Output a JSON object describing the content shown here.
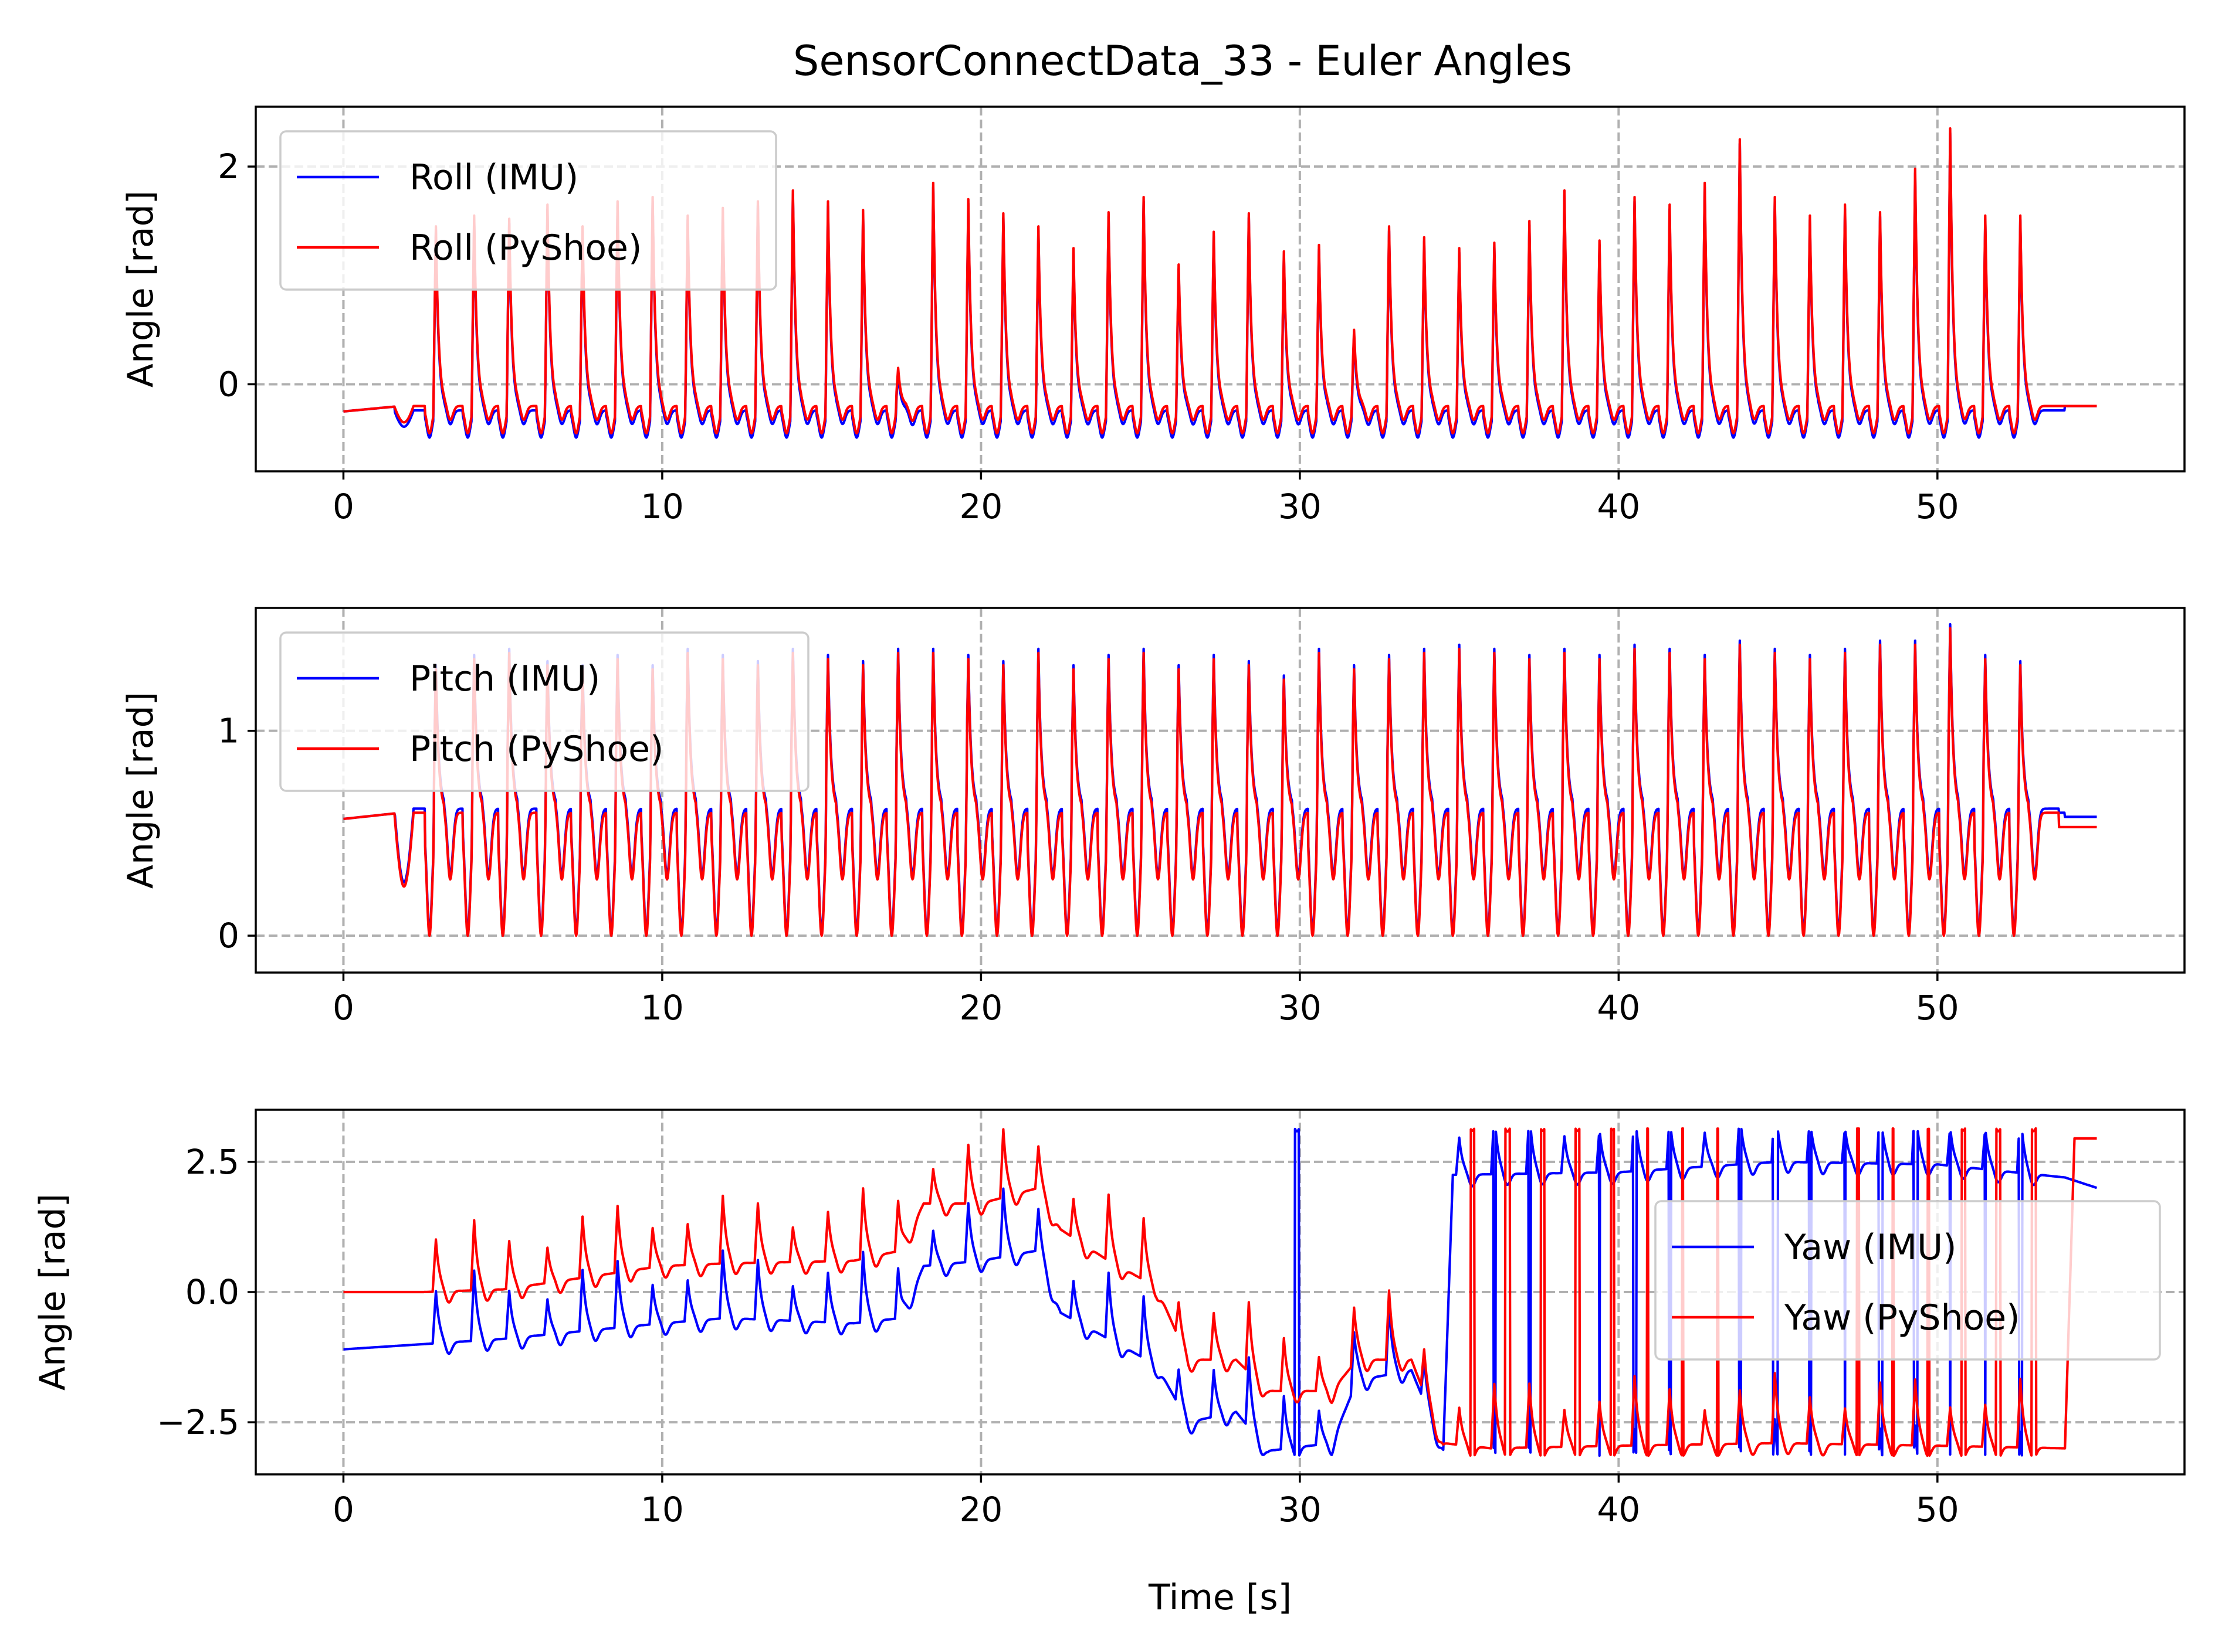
{
  "chart_data": {
    "type": "line",
    "title": "SensorConnectData_33 - Euler Angles",
    "grid": true,
    "colors": {
      "imu": "#0000ff",
      "pyshoe": "#ff0000",
      "grid": "#b0b0b0"
    },
    "panels": [
      {
        "id": "roll",
        "ylabel": "Angle [rad]",
        "xlabel": "",
        "xlim": [
          -2.75,
          57.75
        ],
        "ylim": [
          -0.8,
          2.55
        ],
        "xticks": [
          0,
          10,
          20,
          30,
          40,
          50
        ],
        "xtick_labels": [
          "0",
          "10",
          "20",
          "30",
          "40",
          "50"
        ],
        "yticks": [
          0,
          2
        ],
        "ytick_labels": [
          "0",
          "2"
        ],
        "legend_position": "upper-left",
        "series": [
          {
            "name": "Roll (IMU)",
            "key": "imu"
          },
          {
            "name": "Roll (PyShoe)",
            "key": "pyshoe"
          }
        ],
        "model": {
          "kind": "gait",
          "start": -0.25,
          "end": -0.2,
          "baseline": -0.2,
          "trough": -0.45,
          "step_times": [
            2.9,
            4.1,
            5.2,
            6.4,
            7.5,
            8.6,
            9.7,
            10.8,
            11.9,
            13.0,
            14.1,
            15.2,
            16.3,
            17.4,
            18.5,
            19.6,
            20.7,
            21.8,
            22.9,
            24.0,
            25.1,
            26.2,
            27.3,
            28.4,
            29.5,
            30.6,
            31.7,
            32.8,
            33.9,
            35.0,
            36.1,
            37.2,
            38.3,
            39.4,
            40.5,
            41.6,
            42.7,
            43.8,
            44.9,
            46.0,
            47.1,
            48.2,
            49.3,
            50.4,
            51.5,
            52.6
          ],
          "step_peaks": [
            1.45,
            1.55,
            1.52,
            1.65,
            1.45,
            1.68,
            1.72,
            1.55,
            1.62,
            1.68,
            1.78,
            1.68,
            1.6,
            0.15,
            1.85,
            1.7,
            1.57,
            1.45,
            1.25,
            1.58,
            1.72,
            1.1,
            1.4,
            1.57,
            1.22,
            1.28,
            0.5,
            1.45,
            1.35,
            1.25,
            1.3,
            1.5,
            1.78,
            1.32,
            1.72,
            1.65,
            1.85,
            2.25,
            1.72,
            1.55,
            1.65,
            1.58,
            1.98,
            2.35,
            1.55,
            1.55
          ],
          "imu_offset": -0.04
        }
      },
      {
        "id": "pitch",
        "ylabel": "Angle [rad]",
        "xlabel": "",
        "xlim": [
          -2.75,
          57.75
        ],
        "ylim": [
          -0.18,
          1.6
        ],
        "xticks": [
          0,
          10,
          20,
          30,
          40,
          50
        ],
        "xtick_labels": [
          "0",
          "10",
          "20",
          "30",
          "40",
          "50"
        ],
        "yticks": [
          0,
          1
        ],
        "ytick_labels": [
          "0",
          "1"
        ],
        "legend_position": "upper-left",
        "series": [
          {
            "name": "Pitch (IMU)",
            "key": "imu"
          },
          {
            "name": "Pitch (PyShoe)",
            "key": "pyshoe"
          }
        ],
        "model": {
          "kind": "gait-pitch",
          "start": 0.57,
          "end_imu": 0.58,
          "end_pyshoe": 0.53,
          "baseline": 0.6,
          "trough": 0.0,
          "step_times": [
            2.9,
            4.1,
            5.2,
            6.4,
            7.5,
            8.6,
            9.7,
            10.8,
            11.9,
            13.0,
            14.1,
            15.2,
            16.3,
            17.4,
            18.5,
            19.6,
            20.7,
            21.8,
            22.9,
            24.0,
            25.1,
            26.2,
            27.3,
            28.4,
            29.5,
            30.6,
            31.7,
            32.8,
            33.9,
            35.0,
            36.1,
            37.2,
            38.3,
            39.4,
            40.5,
            41.6,
            42.7,
            43.8,
            44.9,
            46.0,
            47.1,
            48.2,
            49.3,
            50.4,
            51.5,
            52.6
          ],
          "step_peaks": [
            1.3,
            1.35,
            1.38,
            1.32,
            1.3,
            1.35,
            1.3,
            1.38,
            1.35,
            1.32,
            1.38,
            1.35,
            1.32,
            1.38,
            1.38,
            1.35,
            1.32,
            1.38,
            1.3,
            1.35,
            1.38,
            1.3,
            1.35,
            1.32,
            1.25,
            1.38,
            1.3,
            1.35,
            1.38,
            1.4,
            1.38,
            1.35,
            1.38,
            1.35,
            1.4,
            1.38,
            1.35,
            1.42,
            1.38,
            1.35,
            1.38,
            1.42,
            1.42,
            1.5,
            1.35,
            1.32
          ],
          "imu_offset": 0.02
        }
      },
      {
        "id": "yaw",
        "ylabel": "Angle [rad]",
        "xlabel": "Time [s]",
        "xlim": [
          -2.75,
          57.75
        ],
        "ylim": [
          -3.5,
          3.5
        ],
        "xticks": [
          0,
          10,
          20,
          30,
          40,
          50
        ],
        "xtick_labels": [
          "0",
          "10",
          "20",
          "30",
          "40",
          "50"
        ],
        "yticks": [
          -2.5,
          0.0,
          2.5
        ],
        "ytick_labels": [
          "−2.5",
          "0.0",
          "2.5"
        ],
        "legend_position": "center-right",
        "series": [
          {
            "name": "Yaw (IMU)",
            "key": "imu"
          },
          {
            "name": "Yaw (PyShoe)",
            "key": "pyshoe"
          }
        ],
        "model": {
          "kind": "yaw",
          "imu_drift": [
            [
              0,
              -1.1
            ],
            [
              2.5,
              -1.0
            ],
            [
              5,
              -0.9
            ],
            [
              10,
              -0.6
            ],
            [
              12,
              -0.5
            ],
            [
              16,
              -0.6
            ],
            [
              17.5,
              -0.5
            ],
            [
              18.2,
              0.5
            ],
            [
              20,
              0.6
            ],
            [
              21.8,
              0.8
            ],
            [
              22.5,
              -0.4
            ],
            [
              24,
              -0.9
            ],
            [
              25.5,
              -1.4
            ],
            [
              26.5,
              -2.5
            ],
            [
              28,
              -2.3
            ],
            [
              29,
              -3.05
            ],
            [
              31,
              -2.9
            ],
            [
              31.8,
              -1.7
            ],
            [
              33.5,
              -1.5
            ],
            [
              34.5,
              -3.0
            ],
            [
              34.8,
              2.25
            ],
            [
              40,
              2.3
            ],
            [
              45,
              2.5
            ],
            [
              50,
              2.45
            ],
            [
              54,
              2.2
            ],
            [
              55,
              2.0
            ]
          ],
          "pyshoe_drift": [
            [
              0,
              0.0
            ],
            [
              2.5,
              0.0
            ],
            [
              5,
              0.05
            ],
            [
              10,
              0.5
            ],
            [
              12,
              0.55
            ],
            [
              16,
              0.6
            ],
            [
              17.5,
              0.8
            ],
            [
              18.2,
              1.7
            ],
            [
              20,
              1.7
            ],
            [
              21.8,
              2.0
            ],
            [
              22.5,
              1.2
            ],
            [
              24,
              0.6
            ],
            [
              25.5,
              0.1
            ],
            [
              26.5,
              -1.3
            ],
            [
              28,
              -1.3
            ],
            [
              29,
              -1.9
            ],
            [
              31,
              -1.9
            ],
            [
              31.8,
              -1.3
            ],
            [
              33.5,
              -1.3
            ],
            [
              34.5,
              -2.9
            ],
            [
              36,
              -3.0
            ],
            [
              40,
              -2.95
            ],
            [
              45,
              -2.9
            ],
            [
              50,
              -2.95
            ],
            [
              54,
              -3.0
            ],
            [
              54.3,
              2.95
            ],
            [
              55,
              2.95
            ]
          ]
        }
      }
    ],
    "duration": 55.0
  }
}
